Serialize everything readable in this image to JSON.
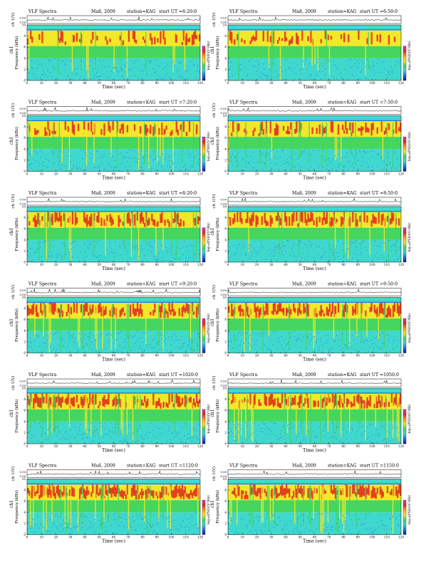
{
  "shared": {
    "title_prefix": "VLF Spectra",
    "date": "Maß, 2009",
    "station": "station=KAG",
    "start_label": "start UT",
    "xlabel": "Time (sec)",
    "ylabel_top": "ch 1(V)",
    "ylabel_spec_a": "ch1",
    "ylabel_spec_b": "Frequency (kHz)",
    "colorbar_label": "log₁₀(PSD)(V²/Hz)",
    "colors": {
      "cyan": "#3fd8cf",
      "green": "#44d65f",
      "yellow": "#f2e82a",
      "red": "#e1281d",
      "blue": "#2a6bd8",
      "magenta": "#d43ed0",
      "darkblue": "#0a1c9e",
      "black": "#000000"
    },
    "colorbar_stops": [
      "#d43ed0",
      "#e1281d",
      "#f7a11c",
      "#f2e82a",
      "#44d65f",
      "#3fd8cf",
      "#2a6bd8",
      "#0a1c9e"
    ]
  },
  "chart_data": [
    {
      "type": "heatmap",
      "title_time": "=6:20:0",
      "xlabel": "Time (sec)",
      "ylabel": "Frequency (kHz)",
      "xlim": [
        0,
        120
      ],
      "ylim": [
        0,
        10
      ],
      "xticks": [
        0,
        10,
        20,
        30,
        40,
        50,
        60,
        70,
        80,
        90,
        100,
        110,
        120
      ],
      "yticks": [
        0,
        2,
        4,
        6,
        8,
        10
      ],
      "top_yticks": [
        "0.00",
        "0.50"
      ]
    },
    {
      "type": "heatmap",
      "title_time": "=6:50:0",
      "xlabel": "Time (sec)",
      "ylabel": "Frequency (kHz)",
      "xlim": [
        0,
        120
      ],
      "ylim": [
        0,
        10
      ],
      "xticks": [
        0,
        10,
        20,
        30,
        40,
        50,
        60,
        70,
        80,
        90,
        100,
        110,
        120
      ],
      "yticks": [
        0,
        2,
        4,
        6,
        8,
        10
      ],
      "top_yticks": [
        "0.00",
        "0.50"
      ]
    },
    {
      "type": "heatmap",
      "title_time": "=7:20:0",
      "xlabel": "Time (sec)",
      "ylabel": "Frequency (kHz)",
      "xlim": [
        0,
        120
      ],
      "ylim": [
        0,
        10
      ],
      "xticks": [
        0,
        10,
        20,
        30,
        40,
        50,
        60,
        70,
        80,
        90,
        100,
        110,
        120
      ],
      "yticks": [
        0,
        2,
        4,
        6,
        8,
        10
      ],
      "top_yticks": [
        "0.00",
        "0.50"
      ]
    },
    {
      "type": "heatmap",
      "title_time": "=7:50:0",
      "xlabel": "Time (sec)",
      "ylabel": "Frequency (kHz)",
      "xlim": [
        0,
        120
      ],
      "ylim": [
        0,
        10
      ],
      "xticks": [
        0,
        10,
        20,
        30,
        40,
        50,
        60,
        70,
        80,
        90,
        100,
        110,
        120
      ],
      "yticks": [
        0,
        2,
        4,
        6,
        8,
        10
      ],
      "top_yticks": [
        "0.00",
        "0.50"
      ]
    },
    {
      "type": "heatmap",
      "title_time": "=8:20:0",
      "xlabel": "Time (sec)",
      "ylabel": "Frequency (kHz)",
      "xlim": [
        0,
        120
      ],
      "ylim": [
        0,
        10
      ],
      "xticks": [
        0,
        10,
        20,
        30,
        40,
        50,
        60,
        70,
        80,
        90,
        100,
        110,
        120
      ],
      "yticks": [
        0,
        2,
        4,
        6,
        8,
        10
      ],
      "top_yticks": [
        "0.00",
        "0.50"
      ]
    },
    {
      "type": "heatmap",
      "title_time": "=8:50:0",
      "xlabel": "Time (sec)",
      "ylabel": "Frequency (kHz)",
      "xlim": [
        0,
        120
      ],
      "ylim": [
        0,
        10
      ],
      "xticks": [
        0,
        10,
        20,
        30,
        40,
        50,
        60,
        70,
        80,
        90,
        100,
        110,
        120
      ],
      "yticks": [
        0,
        2,
        4,
        6,
        8,
        10
      ],
      "top_yticks": [
        "0.00",
        "0.50"
      ]
    },
    {
      "type": "heatmap",
      "title_time": "=9:20:0",
      "xlabel": "Time (sec)",
      "ylabel": "Frequency (kHz)",
      "xlim": [
        0,
        120
      ],
      "ylim": [
        0,
        10
      ],
      "xticks": [
        0,
        10,
        20,
        30,
        40,
        50,
        60,
        70,
        80,
        90,
        100,
        110,
        120
      ],
      "yticks": [
        0,
        2,
        4,
        6,
        8,
        10
      ],
      "top_yticks": [
        "0.00",
        "0.50"
      ]
    },
    {
      "type": "heatmap",
      "title_time": "=9:50:0",
      "xlabel": "Time (sec)",
      "ylabel": "Frequency (kHz)",
      "xlim": [
        0,
        120
      ],
      "ylim": [
        0,
        10
      ],
      "xticks": [
        0,
        10,
        20,
        30,
        40,
        50,
        60,
        70,
        80,
        90,
        100,
        110,
        120
      ],
      "yticks": [
        0,
        2,
        4,
        6,
        8,
        10
      ],
      "top_yticks": [
        "0.00",
        "0.50"
      ]
    },
    {
      "type": "heatmap",
      "title_time": "=1020:0",
      "xlabel": "Time (sec)",
      "ylabel": "Frequency (kHz)",
      "xlim": [
        0,
        120
      ],
      "ylim": [
        0,
        10
      ],
      "xticks": [
        0,
        10,
        20,
        30,
        40,
        50,
        60,
        70,
        80,
        90,
        100,
        110,
        120
      ],
      "yticks": [
        0,
        2,
        4,
        6,
        8,
        10
      ],
      "top_yticks": [
        "0.00",
        "0.50"
      ]
    },
    {
      "type": "heatmap",
      "title_time": "=1050:0",
      "xlabel": "Time (sec)",
      "ylabel": "Frequency (kHz)",
      "xlim": [
        0,
        120
      ],
      "ylim": [
        0,
        10
      ],
      "xticks": [
        0,
        10,
        20,
        30,
        40,
        50,
        60,
        70,
        80,
        90,
        100,
        110,
        120
      ],
      "yticks": [
        0,
        2,
        4,
        6,
        8,
        10
      ],
      "top_yticks": [
        "0.00",
        "0.50"
      ]
    },
    {
      "type": "heatmap",
      "title_time": "=1120:0",
      "xlabel": "Time (sec)",
      "ylabel": "Frequency (kHz)",
      "xlim": [
        0,
        120
      ],
      "ylim": [
        0,
        10
      ],
      "xticks": [
        0,
        10,
        20,
        30,
        40,
        50,
        60,
        70,
        80,
        90,
        100,
        110,
        120
      ],
      "yticks": [
        0,
        2,
        4,
        6,
        8,
        10
      ],
      "top_yticks": [
        "0.00",
        "0.50"
      ]
    },
    {
      "type": "heatmap",
      "title_time": "=1150:0",
      "xlabel": "Time (sec)",
      "ylabel": "Frequency (kHz)",
      "xlim": [
        0,
        120
      ],
      "ylim": [
        0,
        10
      ],
      "xticks": [
        0,
        10,
        20,
        30,
        40,
        50,
        60,
        70,
        80,
        90,
        100,
        110,
        120
      ],
      "yticks": [
        0,
        2,
        4,
        6,
        8,
        10
      ],
      "top_yticks": [
        "0.00",
        "0.50"
      ]
    }
  ]
}
